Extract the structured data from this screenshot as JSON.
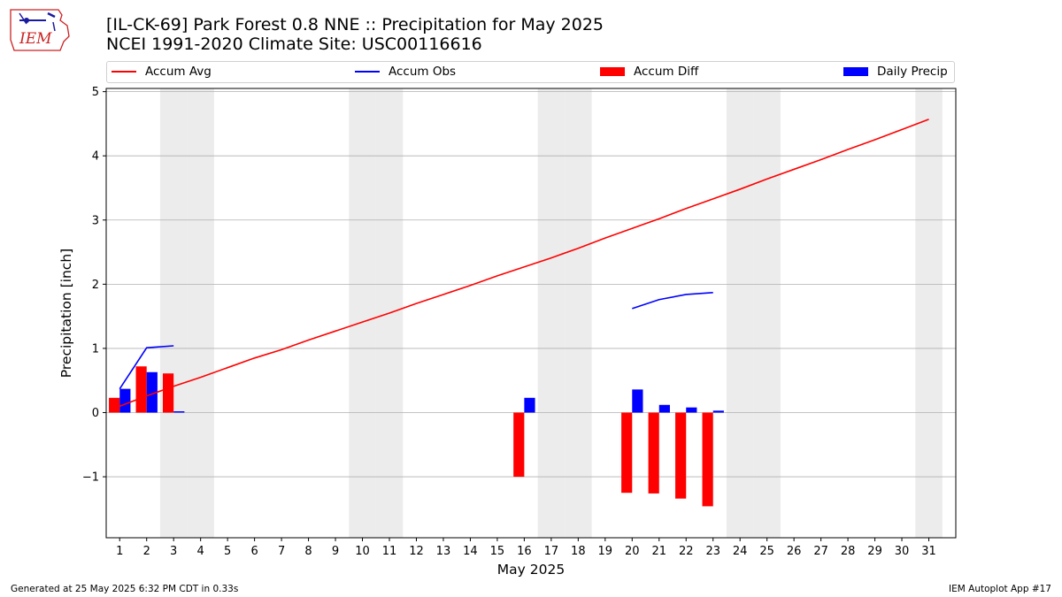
{
  "logo": {
    "text": "IEM"
  },
  "header": {
    "title_line1": "[IL-CK-69] Park Forest 0.8 NNE :: Precipitation for May 2025",
    "title_line2": "NCEI 1991-2020 Climate Site: USC00116616"
  },
  "legend": {
    "items": [
      {
        "label": "Accum Avg",
        "kind": "line",
        "color": "#ff0000"
      },
      {
        "label": "Accum Obs",
        "kind": "line",
        "color": "#0000ff"
      },
      {
        "label": "Accum Diff",
        "kind": "bar",
        "color": "#ff0000"
      },
      {
        "label": "Daily Precip",
        "kind": "bar",
        "color": "#0000ff"
      }
    ]
  },
  "chart_data": {
    "type": "bar",
    "xlabel": "May 2025",
    "ylabel": "Precipitation [inch]",
    "ylim": [
      -1.95,
      5.05
    ],
    "yticks": [
      -1,
      0,
      1,
      2,
      3,
      4,
      5
    ],
    "ytick_labels": [
      "−1",
      "0",
      "1",
      "2",
      "3",
      "4",
      "5"
    ],
    "x": [
      1,
      2,
      3,
      4,
      5,
      6,
      7,
      8,
      9,
      10,
      11,
      12,
      13,
      14,
      15,
      16,
      17,
      18,
      19,
      20,
      21,
      22,
      23,
      24,
      25,
      26,
      27,
      28,
      29,
      30,
      31
    ],
    "weekend_days": [
      3,
      4,
      10,
      11,
      17,
      18,
      24,
      25,
      31
    ],
    "grid": "horizontal",
    "series": [
      {
        "name": "Accum Avg",
        "kind": "line",
        "color": "#ff0000",
        "values": [
          0.1,
          0.26,
          0.41,
          0.55,
          0.7,
          0.85,
          0.98,
          1.13,
          1.27,
          1.41,
          1.55,
          1.7,
          1.84,
          1.98,
          2.13,
          2.27,
          2.41,
          2.56,
          2.72,
          2.87,
          3.02,
          3.18,
          3.33,
          3.48,
          3.64,
          3.79,
          3.94,
          4.1,
          4.25,
          4.41,
          4.57
        ]
      },
      {
        "name": "Accum Obs",
        "kind": "line",
        "color": "#0000ff",
        "values": [
          0.37,
          1.01,
          1.04,
          null,
          null,
          null,
          null,
          null,
          null,
          null,
          null,
          null,
          null,
          null,
          null,
          null,
          null,
          null,
          null,
          1.62,
          1.76,
          1.84,
          1.87,
          null,
          null,
          null,
          null,
          null,
          null,
          null,
          null
        ]
      },
      {
        "name": "Accum Diff",
        "kind": "bar",
        "color": "#ff0000",
        "values": [
          0.23,
          0.72,
          0.61,
          null,
          null,
          null,
          null,
          null,
          null,
          null,
          null,
          null,
          null,
          null,
          null,
          -1.0,
          null,
          null,
          null,
          -1.25,
          -1.26,
          -1.34,
          -1.46,
          null,
          null,
          null,
          null,
          null,
          null,
          null,
          null
        ]
      },
      {
        "name": "Daily Precip",
        "kind": "bar",
        "color": "#0000ff",
        "values": [
          0.37,
          0.63,
          0.02,
          null,
          null,
          null,
          null,
          null,
          null,
          null,
          null,
          null,
          null,
          null,
          null,
          0.23,
          null,
          null,
          null,
          0.36,
          0.12,
          0.08,
          0.03,
          null,
          null,
          null,
          null,
          null,
          null,
          null,
          null
        ]
      }
    ]
  },
  "footer": {
    "left": "Generated at 25 May 2025 6:32 PM CDT in 0.33s",
    "right": "IEM Autoplot App #17"
  }
}
